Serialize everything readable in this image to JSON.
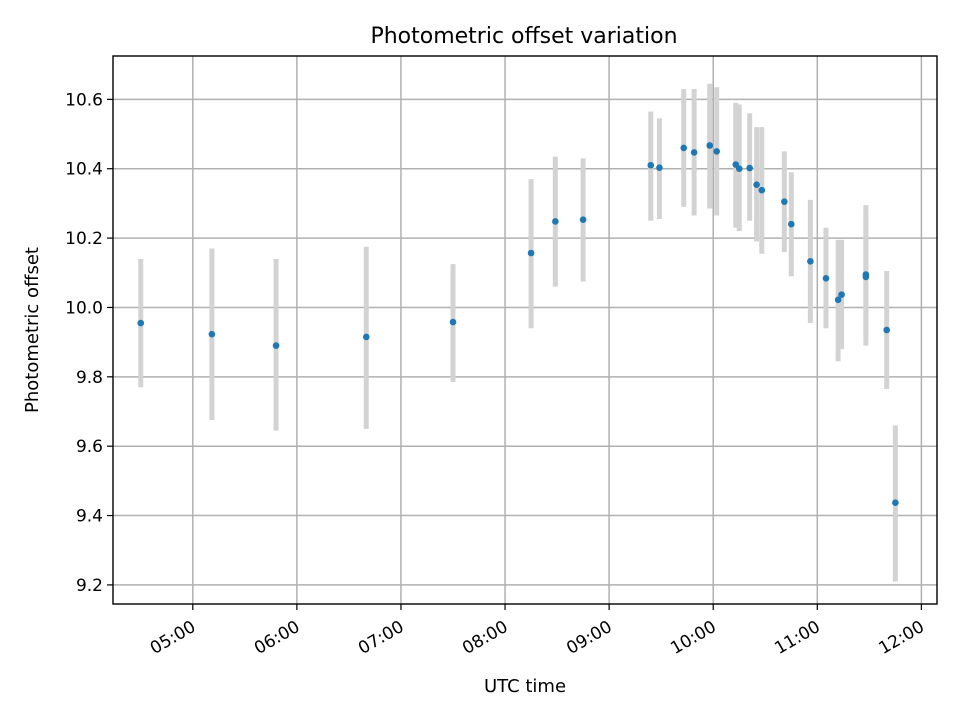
{
  "chart_data": {
    "type": "scatter",
    "title": "Photometric offset variation",
    "xlabel": "UTC time",
    "ylabel": "Photometric offset",
    "x_range": [
      "04:14",
      "12:09"
    ],
    "ylim": [
      9.145,
      10.725
    ],
    "grid": true,
    "x_ticks": [
      "05:00",
      "06:00",
      "07:00",
      "08:00",
      "09:00",
      "10:00",
      "11:00",
      "12:00"
    ],
    "y_ticks": [
      "9.2",
      "9.4",
      "9.6",
      "9.8",
      "10.0",
      "10.2",
      "10.4",
      "10.6"
    ],
    "point_color": "#1f77b4",
    "errorbar_color": "#d3d3d3",
    "series": [
      {
        "points": [
          {
            "time": "04:30",
            "y": 9.955,
            "ylow": 9.77,
            "yhigh": 10.14
          },
          {
            "time": "05:11",
            "y": 9.923,
            "ylow": 9.675,
            "yhigh": 10.17
          },
          {
            "time": "05:48",
            "y": 9.89,
            "ylow": 9.645,
            "yhigh": 10.14
          },
          {
            "time": "06:40",
            "y": 9.915,
            "ylow": 9.65,
            "yhigh": 10.175
          },
          {
            "time": "07:30",
            "y": 9.958,
            "ylow": 9.785,
            "yhigh": 10.125
          },
          {
            "time": "08:15",
            "y": 10.157,
            "ylow": 9.94,
            "yhigh": 10.37
          },
          {
            "time": "08:29",
            "y": 10.248,
            "ylow": 10.06,
            "yhigh": 10.435
          },
          {
            "time": "08:45",
            "y": 10.253,
            "ylow": 10.075,
            "yhigh": 10.43
          },
          {
            "time": "09:24",
            "y": 10.41,
            "ylow": 10.25,
            "yhigh": 10.565
          },
          {
            "time": "09:29",
            "y": 10.403,
            "ylow": 10.255,
            "yhigh": 10.545
          },
          {
            "time": "09:43",
            "y": 10.46,
            "ylow": 10.29,
            "yhigh": 10.63
          },
          {
            "time": "09:49",
            "y": 10.447,
            "ylow": 10.265,
            "yhigh": 10.63
          },
          {
            "time": "09:58",
            "y": 10.467,
            "ylow": 10.285,
            "yhigh": 10.645
          },
          {
            "time": "10:02",
            "y": 10.45,
            "ylow": 10.265,
            "yhigh": 10.635
          },
          {
            "time": "10:13",
            "y": 10.412,
            "ylow": 10.23,
            "yhigh": 10.59
          },
          {
            "time": "10:15",
            "y": 10.4,
            "ylow": 10.22,
            "yhigh": 10.585
          },
          {
            "time": "10:21",
            "y": 10.402,
            "ylow": 10.25,
            "yhigh": 10.56
          },
          {
            "time": "10:25",
            "y": 10.354,
            "ylow": 10.19,
            "yhigh": 10.52
          },
          {
            "time": "10:28",
            "y": 10.338,
            "ylow": 10.155,
            "yhigh": 10.52
          },
          {
            "time": "10:41",
            "y": 10.305,
            "ylow": 10.16,
            "yhigh": 10.45
          },
          {
            "time": "10:45",
            "y": 10.24,
            "ylow": 10.09,
            "yhigh": 10.39
          },
          {
            "time": "10:56",
            "y": 10.133,
            "ylow": 9.955,
            "yhigh": 10.31
          },
          {
            "time": "11:05",
            "y": 10.084,
            "ylow": 9.94,
            "yhigh": 10.23
          },
          {
            "time": "11:12",
            "y": 10.022,
            "ylow": 9.845,
            "yhigh": 10.195
          },
          {
            "time": "11:14",
            "y": 10.037,
            "ylow": 9.88,
            "yhigh": 10.195
          },
          {
            "time": "11:28",
            "y": 10.095,
            "ylow": 9.89,
            "yhigh": 10.295
          },
          {
            "time": "11:28",
            "y": 10.088,
            "ylow": 9.915,
            "yhigh": 10.28
          },
          {
            "time": "11:40",
            "y": 9.935,
            "ylow": 9.765,
            "yhigh": 10.105
          },
          {
            "time": "11:45",
            "y": 9.437,
            "ylow": 9.21,
            "yhigh": 9.66
          }
        ]
      }
    ]
  }
}
